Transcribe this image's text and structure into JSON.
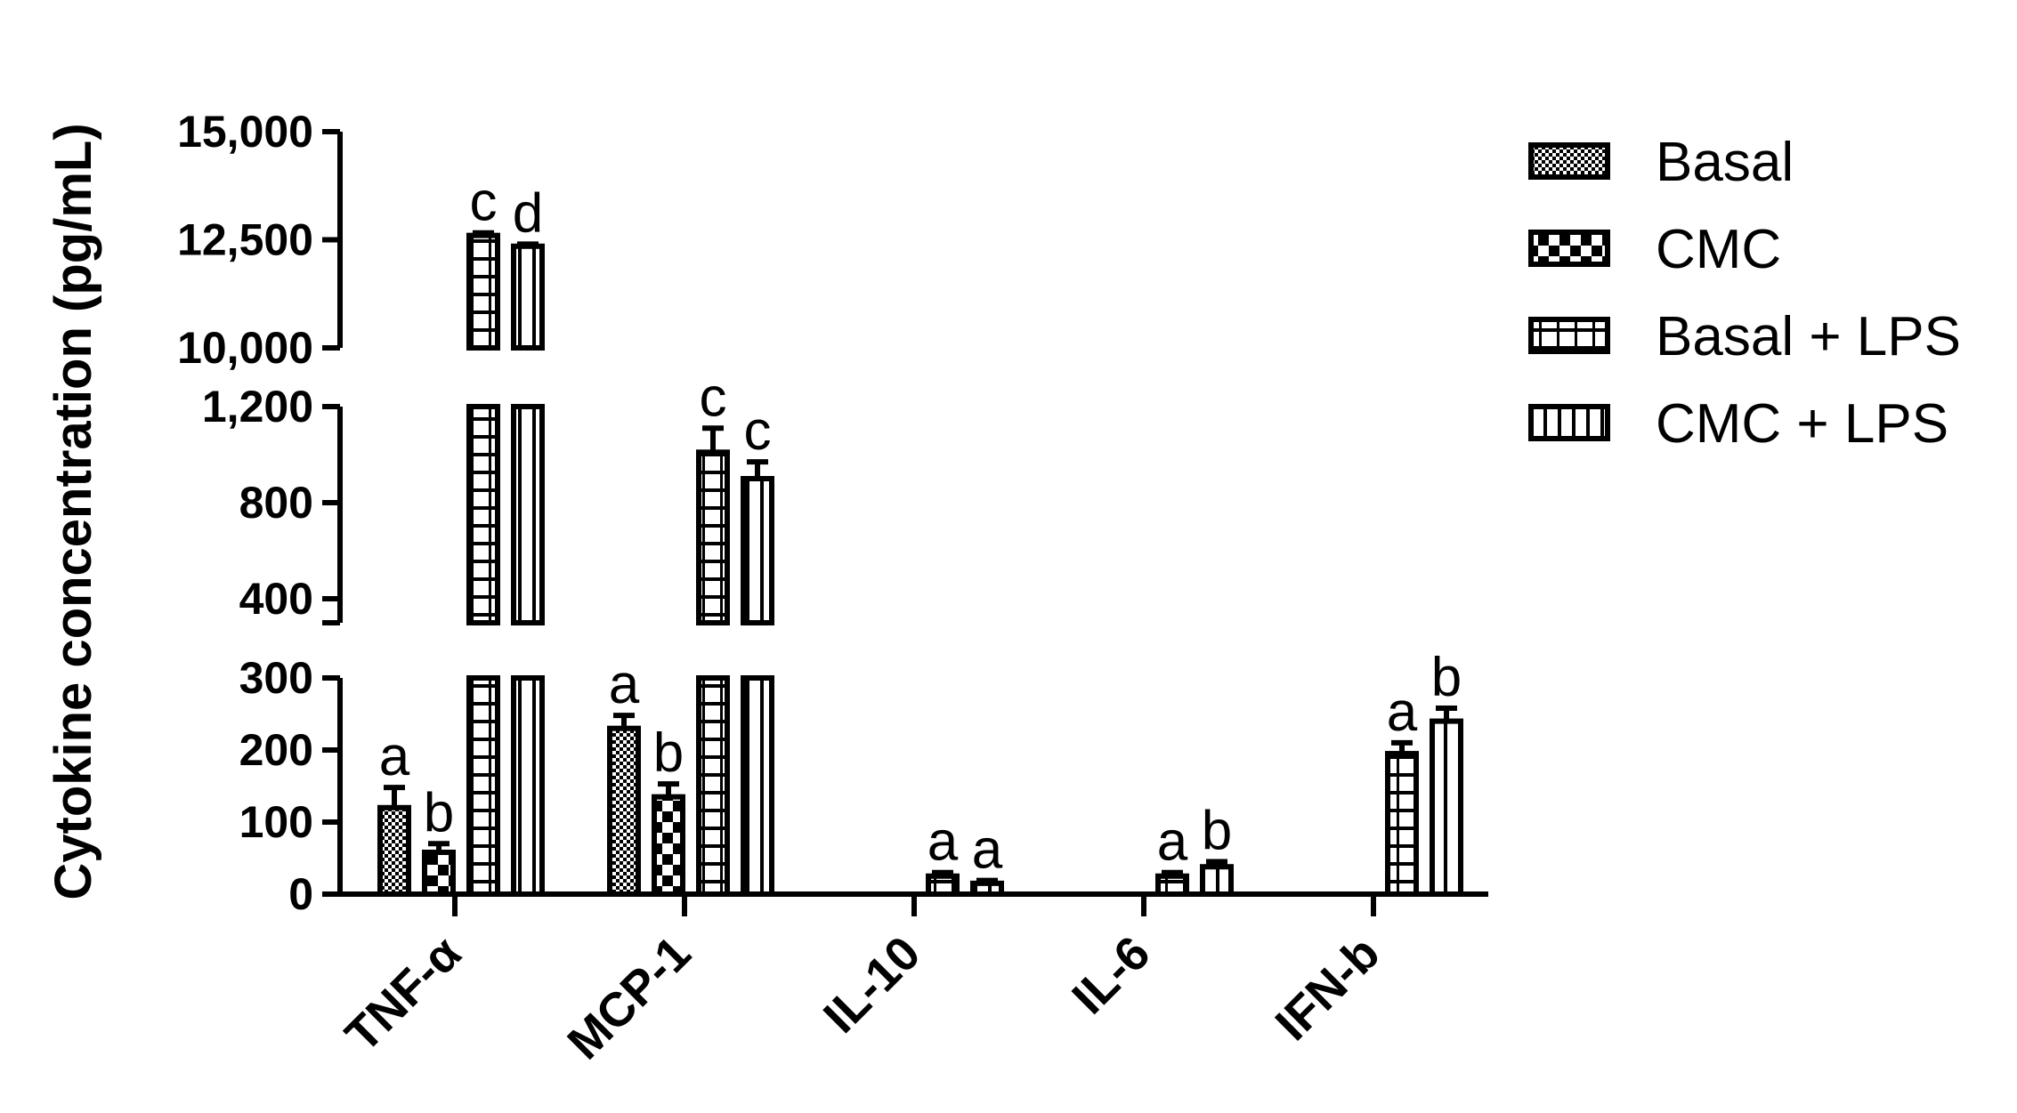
{
  "chart_data": {
    "type": "bar",
    "ylabel": "Cytokine concentration (pg/mL)",
    "categories": [
      "TNF-α",
      "MCP-1",
      "IL-10",
      "IL-6",
      "IFN-b"
    ],
    "y_axis_segments": [
      {
        "range": [
          0,
          300
        ],
        "ticks": [
          0,
          100,
          200,
          300
        ],
        "tick_labels": [
          "0",
          "100",
          "200",
          "300"
        ]
      },
      {
        "range": [
          300,
          1200
        ],
        "ticks": [
          400,
          800,
          1200
        ],
        "tick_labels": [
          "400",
          "800",
          "1,200"
        ]
      },
      {
        "range": [
          10000,
          15000
        ],
        "ticks": [
          10000,
          12500,
          15000
        ],
        "tick_labels": [
          "10,000",
          "12,500",
          "15,000"
        ]
      }
    ],
    "series": [
      {
        "name": "Basal",
        "pattern": "fine-check",
        "values": [
          120,
          230,
          null,
          null,
          null
        ],
        "errors": [
          28,
          18,
          null,
          null,
          null
        ],
        "labels": [
          "a",
          "a",
          null,
          null,
          null
        ]
      },
      {
        "name": "CMC",
        "pattern": "coarse-check",
        "values": [
          58,
          135,
          null,
          null,
          null
        ],
        "errors": [
          12,
          18,
          null,
          null,
          null
        ],
        "labels": [
          "b",
          "b",
          null,
          null,
          null
        ]
      },
      {
        "name": "Basal + LPS",
        "pattern": "horizontal-lines",
        "values": [
          12600,
          1010,
          25,
          25,
          195
        ],
        "errors": [
          60,
          100,
          5,
          5,
          15
        ],
        "labels": [
          "c",
          "c",
          "a",
          "a",
          "a"
        ]
      },
      {
        "name": "CMC + LPS",
        "pattern": "vertical-lines",
        "values": [
          12350,
          900,
          15,
          38,
          240
        ],
        "errors": [
          50,
          70,
          4,
          7,
          18
        ],
        "labels": [
          "d",
          "c",
          "a",
          "b",
          "b"
        ]
      }
    ],
    "legend_placement": "top-right",
    "grid": false
  }
}
